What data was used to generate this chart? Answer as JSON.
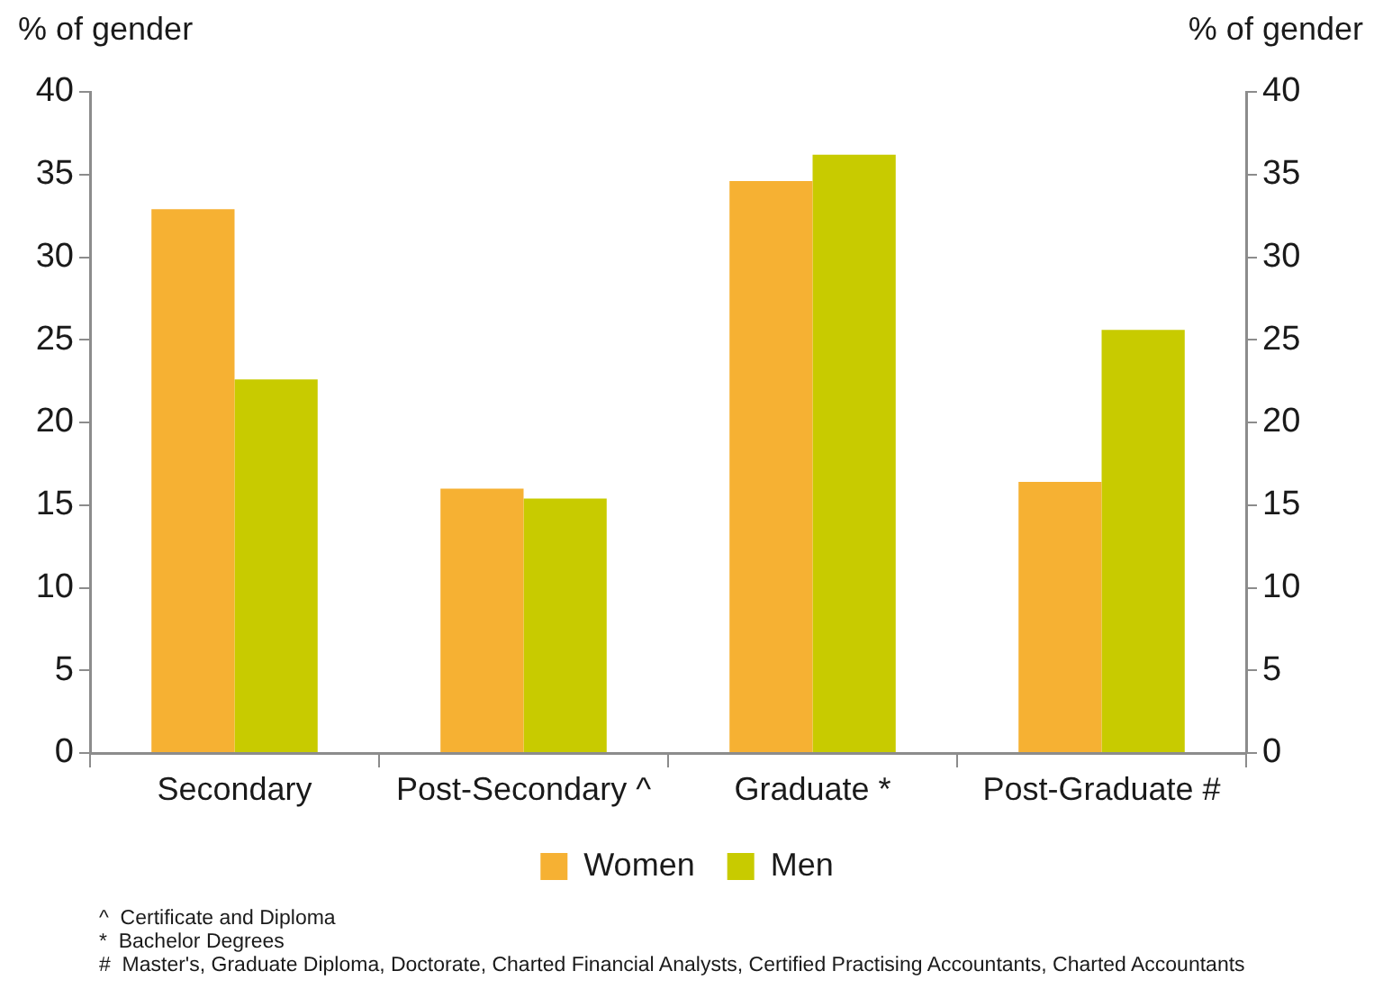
{
  "chart_data": {
    "type": "bar",
    "ylabel": "% of gender",
    "y2label": "% of gender",
    "categories": [
      "Secondary",
      "Post-Secondary ^",
      "Graduate *",
      "Post-Graduate #"
    ],
    "series": [
      {
        "name": "Women",
        "color": "#f6b133",
        "values": [
          32.9,
          16.0,
          34.6,
          16.4
        ]
      },
      {
        "name": "Men",
        "color": "#c8cb00",
        "values": [
          22.6,
          15.4,
          36.2,
          25.6
        ]
      }
    ],
    "ylim": [
      0,
      40
    ],
    "yticks": [
      0,
      5,
      10,
      15,
      20,
      25,
      30,
      35,
      40
    ],
    "y2lim": [
      0,
      40
    ],
    "y2ticks": [
      0,
      5,
      10,
      15,
      20,
      25,
      30,
      35,
      40
    ],
    "grid": false,
    "legend": "bottom",
    "annotations": [
      "^  Certificate and Diploma",
      "*  Bachelor Degrees",
      "#  Master's, Graduate Diploma, Doctorate, Charted Financial Analysts, Certified Practising Accountants, Charted Accountants"
    ]
  }
}
